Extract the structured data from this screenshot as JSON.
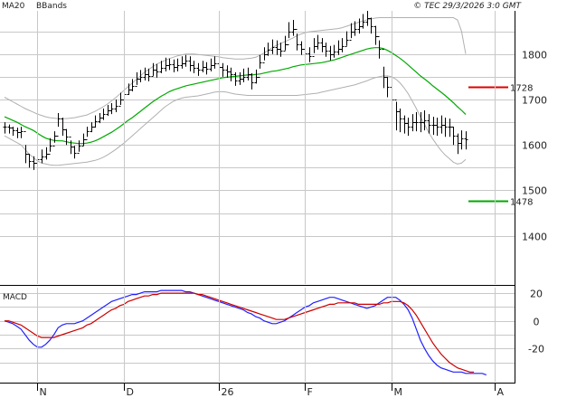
{
  "header": {
    "legend": [
      {
        "label": "MA20",
        "color": "#00aa00"
      },
      {
        "label": "BBands",
        "color": "#b0b0b0"
      }
    ],
    "copyright": "© TEC 29/3/2026 3:0 GMT"
  },
  "chart_data": [
    {
      "type": "line",
      "title": "",
      "kind": "ohlc-bars-with-ma20-and-bollinger-bands",
      "y_ticks": [
        "1400",
        "1500",
        "1600",
        "1700",
        "1800"
      ],
      "y_tick_values": [
        1400,
        1500,
        1600,
        1700,
        1800
      ],
      "ylim": [
        1294,
        1895
      ],
      "x_labels": [
        "N",
        "D",
        "26",
        "F",
        "M",
        "A"
      ],
      "x_label_index": [
        8,
        29,
        52,
        73,
        94,
        119
      ],
      "grid": true,
      "colors": {
        "bars": "#000000",
        "ma20": "#00aa00",
        "bbands": "#b0b0b0"
      },
      "close": [
        1640,
        1638,
        1632,
        1628,
        1630,
        1580,
        1565,
        1560,
        1568,
        1575,
        1580,
        1598,
        1620,
        1658,
        1635,
        1618,
        1596,
        1582,
        1598,
        1612,
        1630,
        1640,
        1652,
        1660,
        1668,
        1676,
        1680,
        1686,
        1700,
        1712,
        1722,
        1730,
        1745,
        1750,
        1755,
        1752,
        1765,
        1762,
        1770,
        1775,
        1778,
        1772,
        1775,
        1780,
        1785,
        1775,
        1770,
        1765,
        1772,
        1768,
        1775,
        1780,
        1772,
        1765,
        1762,
        1755,
        1742,
        1745,
        1750,
        1755,
        1738,
        1750,
        1782,
        1800,
        1810,
        1815,
        1812,
        1808,
        1822,
        1850,
        1855,
        1822,
        1812,
        1802,
        1796,
        1818,
        1826,
        1818,
        1808,
        1800,
        1805,
        1812,
        1818,
        1832,
        1850,
        1856,
        1862,
        1872,
        1880,
        1862,
        1840,
        1812,
        1750,
        1728,
        1700,
        1675,
        1658,
        1648,
        1640,
        1650,
        1650,
        1650,
        1655,
        1645,
        1645,
        1640,
        1645,
        1640,
        1640,
        1620,
        1605,
        1615,
        1612
      ],
      "high": [
        1650,
        1645,
        1640,
        1638,
        1640,
        1600,
        1580,
        1575,
        1580,
        1590,
        1595,
        1615,
        1630,
        1670,
        1660,
        1635,
        1610,
        1598,
        1610,
        1625,
        1640,
        1650,
        1665,
        1670,
        1680,
        1688,
        1692,
        1700,
        1715,
        1725,
        1735,
        1745,
        1760,
        1765,
        1770,
        1768,
        1780,
        1778,
        1785,
        1792,
        1790,
        1788,
        1790,
        1795,
        1798,
        1795,
        1785,
        1780,
        1785,
        1782,
        1790,
        1795,
        1790,
        1780,
        1775,
        1770,
        1760,
        1760,
        1768,
        1770,
        1758,
        1766,
        1798,
        1815,
        1825,
        1832,
        1830,
        1825,
        1840,
        1870,
        1875,
        1845,
        1828,
        1820,
        1815,
        1835,
        1842,
        1835,
        1825,
        1818,
        1820,
        1830,
        1835,
        1850,
        1868,
        1872,
        1878,
        1888,
        1895,
        1880,
        1862,
        1830,
        1772,
        1750,
        1720,
        1695,
        1680,
        1665,
        1660,
        1668,
        1672,
        1672,
        1676,
        1668,
        1662,
        1660,
        1665,
        1660,
        1658,
        1640,
        1625,
        1632,
        1630
      ],
      "low": [
        1625,
        1625,
        1620,
        1615,
        1615,
        1560,
        1550,
        1545,
        1555,
        1560,
        1568,
        1585,
        1605,
        1640,
        1620,
        1600,
        1580,
        1570,
        1585,
        1598,
        1618,
        1628,
        1638,
        1648,
        1655,
        1664,
        1668,
        1672,
        1688,
        1700,
        1710,
        1718,
        1732,
        1738,
        1742,
        1740,
        1752,
        1748,
        1758,
        1762,
        1765,
        1760,
        1762,
        1768,
        1772,
        1762,
        1758,
        1752,
        1760,
        1755,
        1762,
        1768,
        1760,
        1750,
        1748,
        1740,
        1730,
        1732,
        1738,
        1742,
        1722,
        1735,
        1768,
        1786,
        1796,
        1800,
        1798,
        1794,
        1808,
        1835,
        1840,
        1808,
        1798,
        1788,
        1782,
        1802,
        1810,
        1804,
        1794,
        1786,
        1792,
        1798,
        1804,
        1818,
        1835,
        1840,
        1845,
        1856,
        1862,
        1845,
        1820,
        1790,
        1725,
        1705,
        1678,
        1632,
        1628,
        1625,
        1620,
        1630,
        1630,
        1628,
        1632,
        1625,
        1622,
        1620,
        1625,
        1618,
        1618,
        1600,
        1580,
        1590,
        1590
      ],
      "ma20": [
        1662,
        1658,
        1654,
        1650,
        1645,
        1640,
        1636,
        1632,
        1626,
        1620,
        1615,
        1612,
        1610,
        1609,
        1609,
        1607,
        1605,
        1604,
        1603,
        1603,
        1604,
        1606,
        1609,
        1613,
        1618,
        1623,
        1628,
        1634,
        1640,
        1647,
        1654,
        1660,
        1667,
        1674,
        1681,
        1688,
        1695,
        1701,
        1707,
        1712,
        1717,
        1721,
        1724,
        1727,
        1730,
        1732,
        1734,
        1736,
        1738,
        1740,
        1742,
        1744,
        1746,
        1748,
        1749,
        1750,
        1751,
        1752,
        1753,
        1754,
        1754,
        1755,
        1756,
        1758,
        1760,
        1762,
        1763,
        1765,
        1767,
        1769,
        1772,
        1774,
        1776,
        1777,
        1778,
        1779,
        1780,
        1781,
        1783,
        1785,
        1787,
        1790,
        1793,
        1796,
        1799,
        1802,
        1805,
        1808,
        1811,
        1813,
        1814,
        1814,
        1812,
        1808,
        1803,
        1797,
        1791,
        1784,
        1776,
        1768,
        1760,
        1752,
        1745,
        1738,
        1730,
        1723,
        1716,
        1709,
        1701,
        1693,
        1684,
        1676,
        1667
      ],
      "bb_upper": [
        1705,
        1700,
        1695,
        1690,
        1685,
        1680,
        1676,
        1672,
        1668,
        1665,
        1662,
        1660,
        1659,
        1658,
        1658,
        1658,
        1659,
        1660,
        1662,
        1664,
        1666,
        1670,
        1674,
        1679,
        1684,
        1690,
        1697,
        1704,
        1712,
        1720,
        1728,
        1736,
        1744,
        1752,
        1760,
        1766,
        1772,
        1778,
        1782,
        1786,
        1790,
        1793,
        1796,
        1798,
        1800,
        1800,
        1800,
        1799,
        1798,
        1797,
        1796,
        1795,
        1794,
        1792,
        1791,
        1790,
        1789,
        1789,
        1789,
        1790,
        1791,
        1793,
        1797,
        1802,
        1808,
        1814,
        1819,
        1823,
        1827,
        1831,
        1835,
        1840,
        1844,
        1847,
        1849,
        1850,
        1851,
        1852,
        1853,
        1854,
        1855,
        1856,
        1858,
        1861,
        1864,
        1867,
        1870,
        1873,
        1875,
        1877,
        1879,
        1880,
        1880,
        1880,
        1880,
        1880,
        1880,
        1880,
        1880,
        1880,
        1880,
        1880,
        1880,
        1880,
        1880,
        1880,
        1880,
        1880,
        1880,
        1880,
        1875,
        1850,
        1800
      ],
      "bb_lower": [
        1620,
        1615,
        1610,
        1605,
        1600,
        1590,
        1580,
        1572,
        1565,
        1560,
        1558,
        1556,
        1555,
        1555,
        1556,
        1557,
        1558,
        1559,
        1560,
        1561,
        1562,
        1564,
        1566,
        1569,
        1573,
        1578,
        1584,
        1590,
        1597,
        1604,
        1612,
        1620,
        1628,
        1636,
        1644,
        1652,
        1660,
        1668,
        1676,
        1684,
        1690,
        1696,
        1700,
        1703,
        1705,
        1706,
        1707,
        1708,
        1710,
        1712,
        1714,
        1716,
        1717,
        1717,
        1716,
        1714,
        1712,
        1711,
        1710,
        1709,
        1709,
        1709,
        1709,
        1709,
        1709,
        1709,
        1709,
        1709,
        1709,
        1709,
        1709,
        1709,
        1710,
        1711,
        1712,
        1713,
        1714,
        1716,
        1718,
        1720,
        1722,
        1724,
        1726,
        1728,
        1730,
        1732,
        1735,
        1738,
        1741,
        1745,
        1748,
        1750,
        1752,
        1752,
        1750,
        1745,
        1737,
        1726,
        1713,
        1697,
        1680,
        1662,
        1645,
        1628,
        1613,
        1600,
        1588,
        1578,
        1570,
        1562,
        1558,
        1560,
        1568
      ],
      "levels": [
        {
          "label": "1728",
          "value": 1728,
          "color": "#e00000"
        },
        {
          "label": "1478",
          "value": 1478,
          "color": "#00aa00"
        }
      ]
    },
    {
      "type": "line",
      "title": "MACD",
      "y_ticks": [
        "20",
        "0",
        "-20"
      ],
      "y_tick_values": [
        20,
        0,
        -20
      ],
      "ylim": [
        -44,
        24
      ],
      "grid": true,
      "series": [
        {
          "color": "#2020ff",
          "values": [
            0,
            -1,
            -2,
            -4,
            -6,
            -10,
            -14,
            -17,
            -19,
            -19,
            -17,
            -14,
            -10,
            -5,
            -3,
            -2,
            -2,
            -2,
            -1,
            0,
            2,
            4,
            6,
            8,
            10,
            12,
            14,
            15,
            16,
            17,
            18,
            19,
            19,
            20,
            21,
            21,
            21,
            21,
            22,
            22,
            22,
            22,
            22,
            22,
            21,
            21,
            20,
            19,
            18,
            17,
            16,
            15,
            14,
            13,
            12,
            11,
            10,
            9,
            8,
            6,
            5,
            3,
            2,
            0,
            -1,
            -2,
            -2,
            -1,
            0,
            2,
            4,
            6,
            8,
            10,
            11,
            13,
            14,
            15,
            16,
            17,
            17,
            16,
            15,
            14,
            13,
            12,
            11,
            10,
            9,
            10,
            11,
            13,
            15,
            17,
            17,
            17,
            15,
            12,
            8,
            2,
            -6,
            -14,
            -20,
            -25,
            -29,
            -32,
            -34,
            -35,
            -36,
            -37,
            -37,
            -37,
            -38,
            -38,
            -38,
            -38,
            -38,
            -39
          ]
        },
        {
          "color": "#cc0000",
          "values": [
            0,
            0,
            -1,
            -2,
            -3,
            -5,
            -7,
            -9,
            -11,
            -12,
            -12,
            -12,
            -12,
            -11,
            -10,
            -9,
            -8,
            -7,
            -6,
            -5,
            -3,
            -2,
            0,
            2,
            4,
            6,
            8,
            9,
            11,
            12,
            14,
            15,
            16,
            17,
            18,
            18,
            19,
            19,
            20,
            20,
            20,
            20,
            20,
            20,
            20,
            20,
            20,
            19,
            19,
            18,
            17,
            16,
            15,
            14,
            13,
            12,
            11,
            10,
            9,
            8,
            7,
            6,
            5,
            4,
            3,
            2,
            1,
            1,
            1,
            2,
            3,
            4,
            5,
            6,
            7,
            8,
            9,
            10,
            11,
            12,
            12,
            13,
            13,
            13,
            13,
            13,
            12,
            12,
            12,
            12,
            12,
            12,
            13,
            13,
            14,
            14,
            14,
            13,
            11,
            8,
            4,
            -1,
            -6,
            -11,
            -16,
            -20,
            -24,
            -27,
            -30,
            -32,
            -34,
            -35,
            -36,
            -37,
            -37
          ]
        }
      ]
    }
  ]
}
